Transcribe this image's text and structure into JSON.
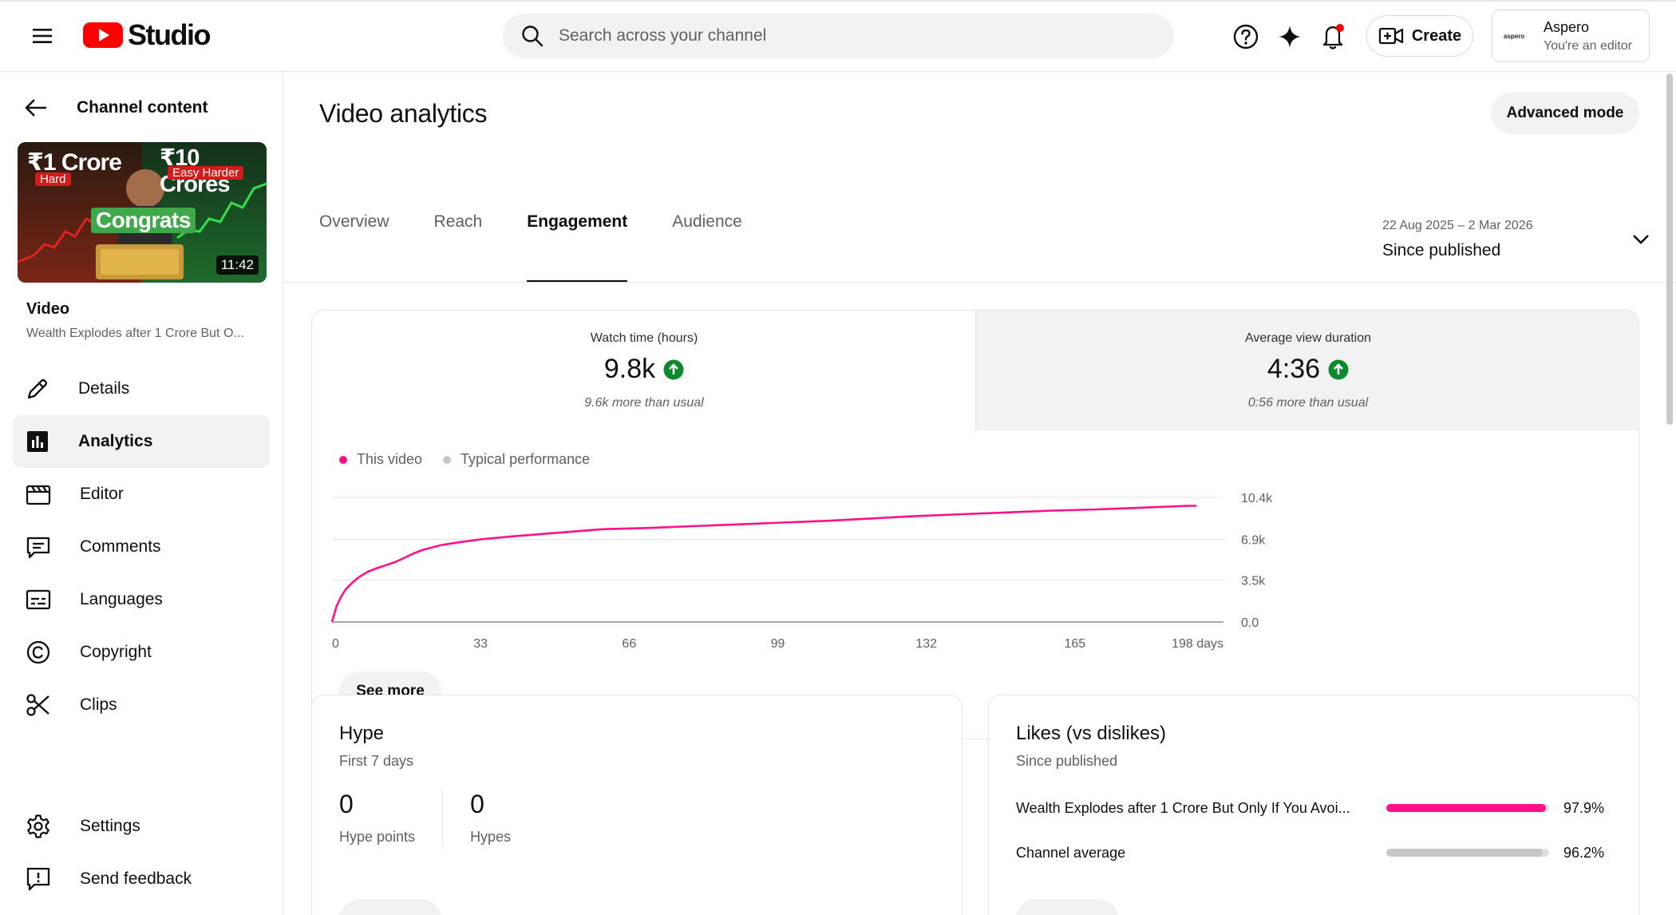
{
  "header": {
    "logo_text": "Studio",
    "search_placeholder": "Search across your channel",
    "create_label": "Create",
    "account": {
      "mini_logo": "aspero",
      "name": "Aspero",
      "role": "You're an editor"
    },
    "icons": [
      "menu-icon",
      "youtube-logo",
      "search-icon",
      "help-icon",
      "sparkle-icon",
      "notifications-icon",
      "create-video-icon"
    ]
  },
  "sidebar": {
    "back_label": "Channel content",
    "thumbnail": {
      "text_left": "₹1 Crore",
      "tag_left": "Hard",
      "text_right": "₹10 Crores",
      "tag_right": "Easy Harder",
      "overlay": "Congrats",
      "duration": "11:42"
    },
    "video_label": "Video",
    "video_title": "Wealth Explodes after 1 Crore But O...",
    "nav": [
      {
        "label": "Details",
        "icon": "pencil-icon",
        "active": false
      },
      {
        "label": "Analytics",
        "icon": "analytics-icon",
        "active": true
      },
      {
        "label": "Editor",
        "icon": "clapperboard-icon",
        "active": false
      },
      {
        "label": "Comments",
        "icon": "comment-icon",
        "active": false
      },
      {
        "label": "Languages",
        "icon": "subtitles-icon",
        "active": false
      },
      {
        "label": "Copyright",
        "icon": "copyright-icon",
        "active": false
      },
      {
        "label": "Clips",
        "icon": "scissors-icon",
        "active": false
      }
    ],
    "nav_bottom": [
      {
        "label": "Settings",
        "icon": "gear-icon"
      },
      {
        "label": "Send feedback",
        "icon": "feedback-icon"
      }
    ]
  },
  "main": {
    "title": "Video analytics",
    "advanced_mode_label": "Advanced mode",
    "tabs": [
      {
        "label": "Overview",
        "active": false
      },
      {
        "label": "Reach",
        "active": false
      },
      {
        "label": "Engagement",
        "active": true
      },
      {
        "label": "Audience",
        "active": false
      }
    ],
    "date_range": {
      "range": "22 Aug 2025 – 2 Mar 2026",
      "label": "Since published"
    },
    "metrics": [
      {
        "label": "Watch time (hours)",
        "value": "9.8k",
        "note": "9.6k more than usual",
        "trend": "up"
      },
      {
        "label": "Average view duration",
        "value": "4:36",
        "note": "0:56 more than usual",
        "trend": "up"
      }
    ],
    "see_more_label": "See more",
    "hype": {
      "title": "Hype",
      "subtitle": "First 7 days",
      "stats": [
        {
          "value": "0",
          "label": "Hype points"
        },
        {
          "value": "0",
          "label": "Hypes"
        }
      ]
    },
    "likes": {
      "title": "Likes (vs dislikes)",
      "subtitle": "Since published",
      "rows": [
        {
          "label": "Wealth Explodes after 1 Crore But Only If You Avoi...",
          "value": "97.9%",
          "fraction": 0.979,
          "color": "#ff0f8a"
        },
        {
          "label": "Channel average",
          "value": "96.2%",
          "fraction": 0.962,
          "color": "#c6c6c6"
        }
      ]
    }
  },
  "colors": {
    "accent_pink": "#ff0f8a",
    "typical_gray": "#c6c6c6",
    "up_green": "#0c8a2e",
    "youtube_red": "#ff0000"
  },
  "chart_data": {
    "type": "line",
    "legend": [
      {
        "name": "This video",
        "color": "#ff0f8a"
      },
      {
        "name": "Typical performance",
        "color": "#c6c6c6"
      }
    ],
    "x_ticks": [
      "0",
      "33",
      "66",
      "99",
      "132",
      "165",
      "198 days"
    ],
    "x_tick_values": [
      0,
      33,
      66,
      99,
      132,
      165,
      198
    ],
    "y_ticks": [
      "10.4k",
      "6.9k",
      "3.5k",
      "0.0"
    ],
    "y_tick_values": [
      10400,
      6900,
      3500,
      0
    ],
    "xlim": [
      0,
      198
    ],
    "ylim": [
      0,
      10400
    ],
    "grid": true,
    "series": [
      {
        "name": "This video",
        "x": [
          0,
          1,
          2,
          3,
          4,
          5,
          6,
          8,
          10,
          12,
          14,
          16,
          18,
          20,
          24,
          28,
          33,
          40,
          50,
          60,
          70,
          80,
          90,
          100,
          110,
          120,
          130,
          140,
          150,
          160,
          170,
          180,
          190,
          192
        ],
        "y": [
          0,
          1300,
          2100,
          2700,
          3100,
          3450,
          3750,
          4200,
          4500,
          4750,
          5000,
          5350,
          5700,
          6000,
          6400,
          6650,
          6900,
          7150,
          7450,
          7750,
          7850,
          8000,
          8150,
          8300,
          8450,
          8650,
          8850,
          9000,
          9150,
          9300,
          9400,
          9550,
          9700,
          9700
        ]
      }
    ]
  }
}
